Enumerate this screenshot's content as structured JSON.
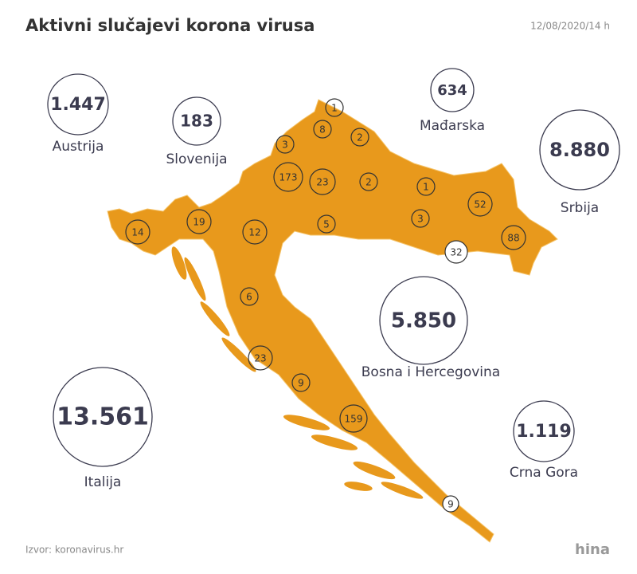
{
  "header": {
    "title": "Aktivni slučajevi korona virusa",
    "date": "12/08/2020/14 h"
  },
  "neighbors": [
    {
      "name": "Austrija",
      "value": "1.447"
    },
    {
      "name": "Slovenija",
      "value": "183"
    },
    {
      "name": "Mađarska",
      "value": "634"
    },
    {
      "name": "Srbija",
      "value": "8.880"
    },
    {
      "name": "Bosna i Hercegovina",
      "value": "5.850"
    },
    {
      "name": "Italija",
      "value": "13.561"
    },
    {
      "name": "Crna Gora",
      "value": "1.119"
    }
  ],
  "counties": {
    "values": [
      1,
      8,
      3,
      2,
      173,
      23,
      2,
      1,
      52,
      3,
      5,
      88,
      32,
      14,
      19,
      12,
      6,
      23,
      9,
      159,
      9
    ]
  },
  "footer": {
    "source": "Izvor: koronavirus.hr",
    "logo": "hina"
  }
}
